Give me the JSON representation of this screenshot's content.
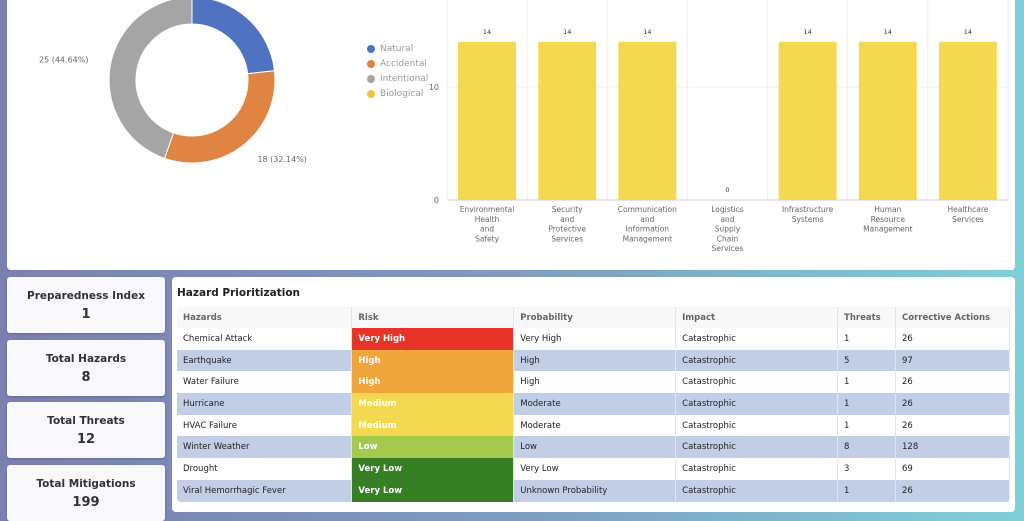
{
  "chart_data": [
    {
      "type": "pie",
      "donut": true,
      "slices": [
        {
          "name": "Natural",
          "value": 13,
          "color": "#4f73c0"
        },
        {
          "name": "Accidental",
          "value": 18,
          "label": "18 (32.14%)",
          "color": "#e08443"
        },
        {
          "name": "Intentional",
          "value": 25,
          "label": "25 (44.64%)",
          "color": "#a5a5a5"
        },
        {
          "name": "Biological",
          "value": 0,
          "color": "#f5c242"
        }
      ],
      "legend_position": "right"
    },
    {
      "type": "bar",
      "categories": [
        [
          "Environmental",
          "Health",
          "and",
          "Safety"
        ],
        [
          "Security",
          "and",
          "Protective",
          "Services"
        ],
        [
          "Communication",
          "and",
          "Information",
          "Management"
        ],
        [
          "Logistics",
          "and",
          "Supply",
          "Chain",
          "Services"
        ],
        [
          "Infrastructure",
          "Systems"
        ],
        [
          "Human",
          "Resource",
          "Management"
        ],
        [
          "Healthcare",
          "Services"
        ]
      ],
      "values": [
        14,
        14,
        14,
        0,
        14,
        14,
        14
      ],
      "yticks": [
        0,
        10
      ],
      "ylim": [
        0,
        15
      ],
      "grid": true,
      "color": "#f3d94f"
    }
  ],
  "stats": [
    {
      "label": "Preparedness Index",
      "value": "1"
    },
    {
      "label": "Total Hazards",
      "value": "8"
    },
    {
      "label": "Total Threats",
      "value": "12"
    },
    {
      "label": "Total Mitigations",
      "value": "199"
    }
  ],
  "table": {
    "title": "Hazard Prioritization",
    "headers": [
      "Hazards",
      "Risk",
      "Probability",
      "Impact",
      "Threats",
      "Corrective Actions"
    ],
    "rows": [
      [
        "Chemical Attack",
        "Very High",
        "Very High",
        "Catastrophic",
        "1",
        "26"
      ],
      [
        "Earthquake",
        "High",
        "High",
        "Catastrophic",
        "5",
        "97"
      ],
      [
        "Water Failure",
        "High",
        "High",
        "Catastrophic",
        "1",
        "26"
      ],
      [
        "Hurricane",
        "Medium",
        "Moderate",
        "Catastrophic",
        "1",
        "26"
      ],
      [
        "HVAC Failure",
        "Medium",
        "Moderate",
        "Catastrophic",
        "1",
        "26"
      ],
      [
        "Winter Weather",
        "Low",
        "Low",
        "Catastrophic",
        "8",
        "128"
      ],
      [
        "Drought",
        "Very Low",
        "Very Low",
        "Catastrophic",
        "3",
        "69"
      ],
      [
        "Viral Hemorrhagic Fever",
        "Very Low",
        "Unknown Probability",
        "Catastrophic",
        "1",
        "26"
      ]
    ],
    "risk_colors": {
      "Very High": "#e83428",
      "High": "#f0a53a",
      "Medium": "#f3d94f",
      "Low": "#a5c94c",
      "Very Low": "#367f25"
    }
  }
}
